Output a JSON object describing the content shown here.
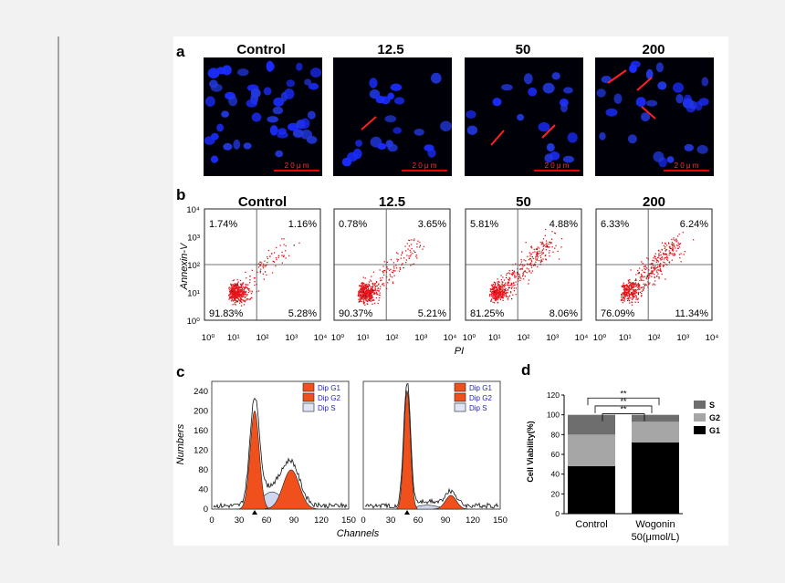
{
  "panel_a": {
    "letter": "a",
    "images": [
      {
        "title": "Control",
        "scale_label": "2 0 μ m"
      },
      {
        "title": "12.5",
        "scale_label": "2 0 μ m"
      },
      {
        "title": "50",
        "scale_label": "2 0 μ m"
      },
      {
        "title": "200",
        "scale_label": "2 0 μ m"
      }
    ]
  },
  "panel_b": {
    "letter": "b",
    "ylabel": "Annexin-V",
    "xlabel": "PI",
    "x_ticks": [
      "10⁰",
      "10¹",
      "10²",
      "10³",
      "10⁴"
    ],
    "y_ticks": [
      "10⁰",
      "10¹",
      "10²",
      "10³",
      "10⁴"
    ],
    "plots": [
      {
        "title": "Control",
        "ul": "1.74%",
        "ur": "1.16%",
        "ll": "91.83%",
        "lr": "5.28%"
      },
      {
        "title": "12.5",
        "ul": "0.78%",
        "ur": "3.65%",
        "ll": "90.37%",
        "lr": "5.21%"
      },
      {
        "title": "50",
        "ul": "5.81%",
        "ur": "4.88%",
        "ll": "81.25%",
        "lr": "8.06%"
      },
      {
        "title": "200",
        "ul": "6.33%",
        "ur": "6.24%",
        "ll": "76.09%",
        "lr": "11.34%"
      }
    ]
  },
  "panel_c": {
    "letter": "c",
    "ylabel": "Numbers",
    "xlabel": "Channels",
    "y_ticks": [
      "0",
      "40",
      "80",
      "120",
      "160",
      "200",
      "240"
    ],
    "x_ticks": [
      "0",
      "30",
      "60",
      "90",
      "120",
      "150"
    ],
    "legend": [
      "Dip G1",
      "Dip G2",
      "Dip S"
    ]
  },
  "chart_data": {
    "type": "bar",
    "title": "",
    "xlabel": "",
    "ylabel": "Cell Viability(%)",
    "ylim": [
      0,
      120
    ],
    "y_ticks": [
      "0",
      "20",
      "40",
      "60",
      "80",
      "100",
      "120"
    ],
    "categories": [
      "Control",
      "Wogonin 50(μmol/L)"
    ],
    "series": [
      {
        "name": "G1",
        "values": [
          48,
          72
        ]
      },
      {
        "name": "G2",
        "values": [
          32,
          21
        ]
      },
      {
        "name": "S",
        "values": [
          20,
          7
        ]
      }
    ],
    "stacked": true,
    "legend": [
      "S",
      "G2",
      "G1"
    ],
    "legend_position": "right",
    "significance": [
      "**",
      "**",
      "**"
    ],
    "colors": {
      "G1": "#000000",
      "G2": "#a6a6a6",
      "S": "#6e6e6e"
    }
  },
  "panel_d": {
    "letter": "d",
    "cat_lines": [
      "Control",
      "Wogonin",
      "50(μmol/L)"
    ]
  }
}
